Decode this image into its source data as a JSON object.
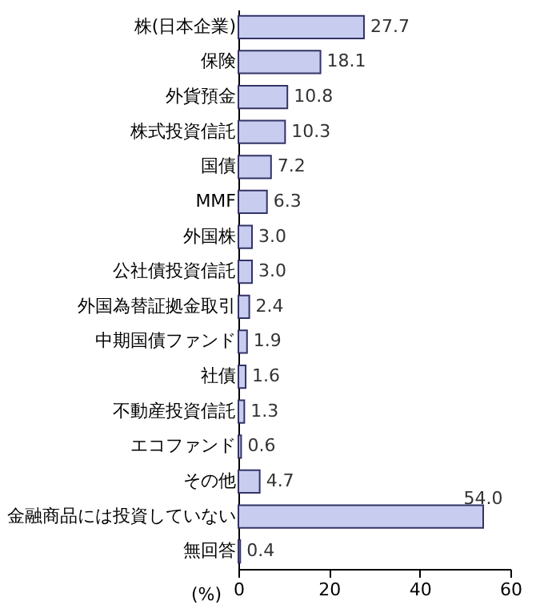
{
  "chart_data": {
    "type": "bar",
    "orientation": "horizontal",
    "categories": [
      "株(日本企業)",
      "保険",
      "外貨預金",
      "株式投資信託",
      "国債",
      "MMF",
      "外国株",
      "公社債投資信託",
      "外国為替証拠金取引",
      "中期国債ファンド",
      "社債",
      "不動産投資信託",
      "エコファンド",
      "その他",
      "金融商品には投資していない",
      "無回答"
    ],
    "values": [
      27.7,
      18.1,
      10.8,
      10.3,
      7.2,
      6.3,
      3.0,
      3.0,
      2.4,
      1.9,
      1.6,
      1.3,
      0.6,
      4.7,
      54.0,
      0.4
    ],
    "value_labels": [
      "27.7",
      "18.1",
      "10.8",
      "10.3",
      "7.2",
      "6.3",
      "3.0",
      "3.0",
      "2.4",
      "1.9",
      "1.6",
      "1.3",
      "0.6",
      "4.7",
      "54.0",
      "0.4"
    ],
    "color": "#c8cdf0",
    "xlim": [
      0,
      60
    ],
    "xticks": [
      0,
      20,
      40,
      60
    ],
    "xlabel": "(%)",
    "grid": false
  }
}
